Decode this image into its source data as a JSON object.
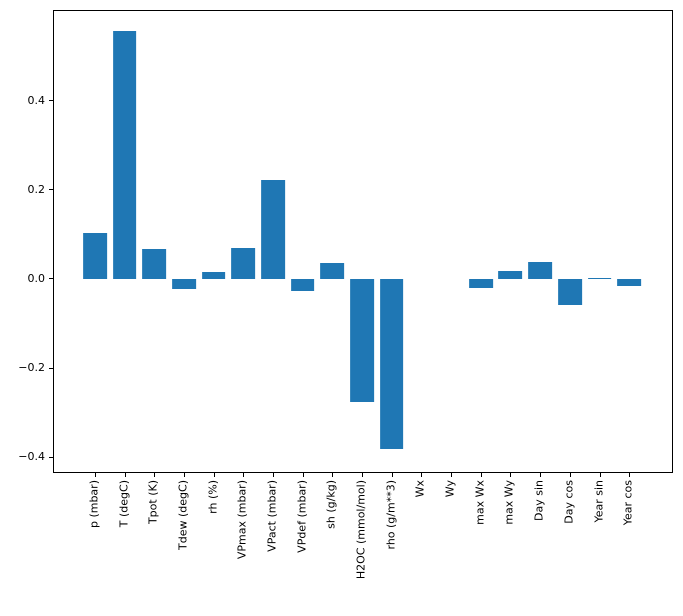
{
  "chart_data": {
    "type": "bar",
    "title": "",
    "xlabel": "",
    "ylabel": "",
    "categories": [
      "p (mbar)",
      "T (degC)",
      "Tpot (K)",
      "Tdew (degC)",
      "rh (%)",
      "VPmax (mbar)",
      "VPact (mbar)",
      "VPdef (mbar)",
      "sh (g/kg)",
      "H2OC (mmol/mol)",
      "rho (g/m**3)",
      "Wx",
      "Wy",
      "max Wx",
      "max Wy",
      "Day sin",
      "Day cos",
      "Year sin",
      "Year cos"
    ],
    "values": [
      0.102,
      0.556,
      0.067,
      -0.022,
      0.015,
      0.07,
      0.221,
      -0.027,
      0.035,
      -0.276,
      -0.382,
      0.0,
      0.0,
      -0.021,
      0.017,
      0.037,
      -0.059,
      0.003,
      -0.015
    ],
    "ylim": [
      -0.433,
      0.601
    ],
    "yticks": [
      0.4,
      0.2,
      0.0,
      -0.2,
      -0.4
    ],
    "ytick_labels": [
      "0.4",
      "0.2",
      "0.0",
      "−0.2",
      "−0.4"
    ],
    "bar_color": "#1f77b4",
    "axis_color": "#000000",
    "background_color": "#ffffff",
    "grid": false,
    "legend": null,
    "x_label_rotation_deg": 90
  }
}
